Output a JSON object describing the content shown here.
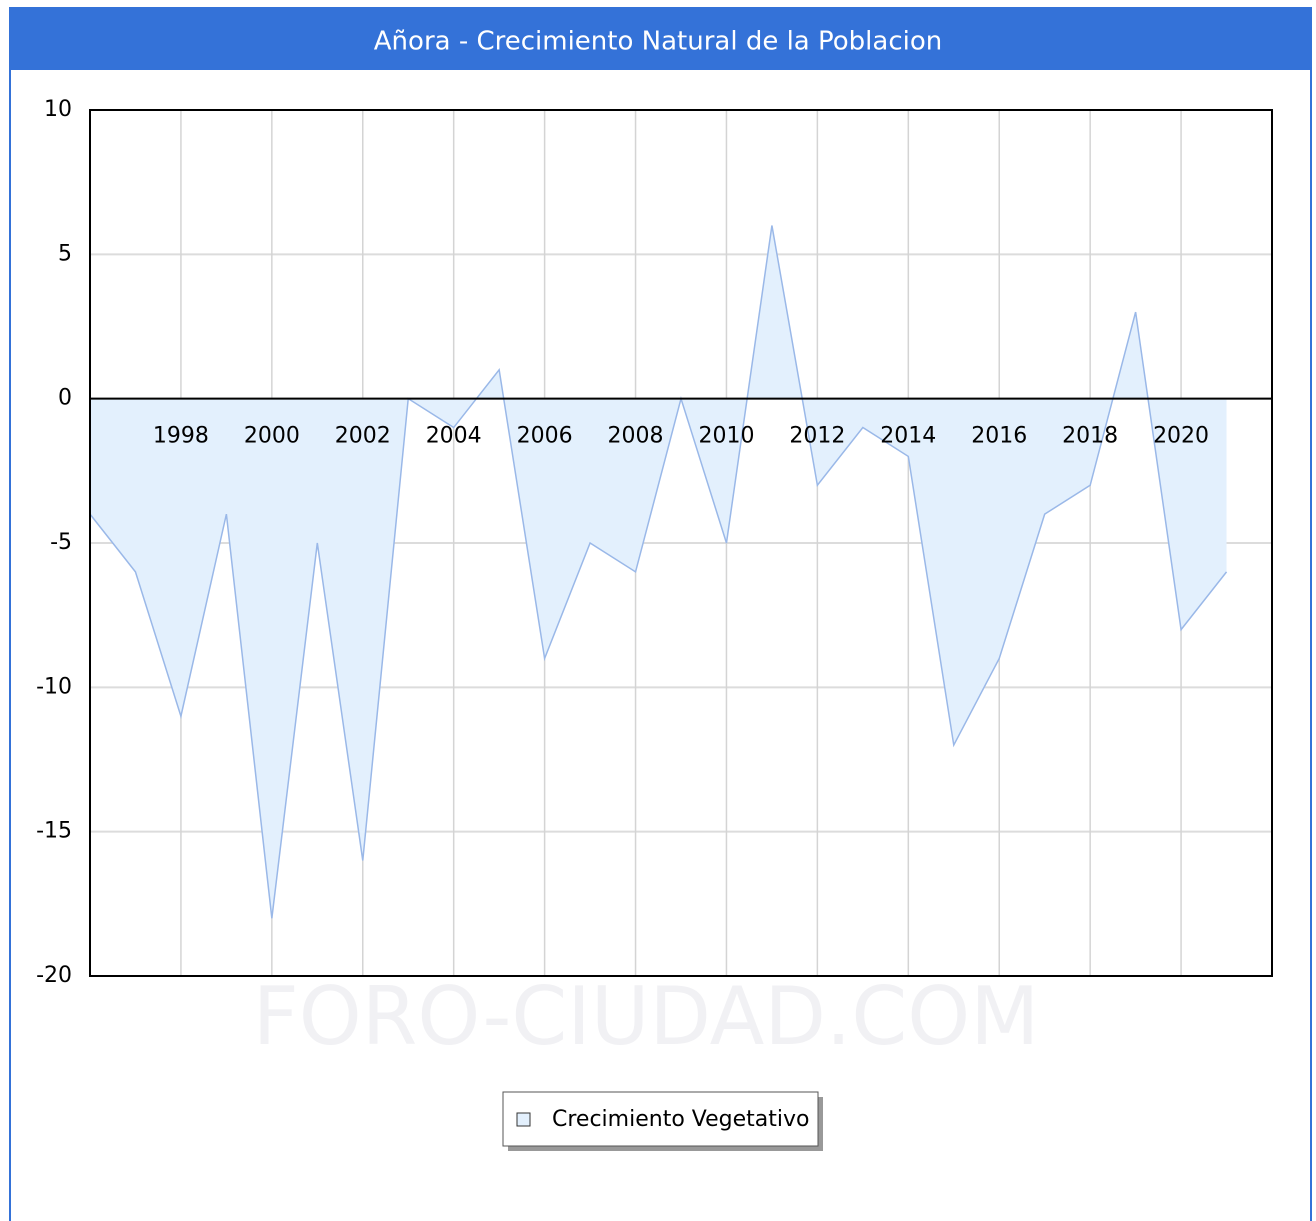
{
  "chart_data": {
    "type": "area",
    "title": "Añora - Crecimiento Natural de la Poblacion",
    "watermark": "FORO-CIUDAD.COM",
    "x": [
      1996,
      1997,
      1998,
      1999,
      2000,
      2001,
      2002,
      2003,
      2004,
      2005,
      2006,
      2007,
      2008,
      2009,
      2010,
      2011,
      2012,
      2013,
      2014,
      2015,
      2016,
      2017,
      2018,
      2019,
      2020,
      2021
    ],
    "series": [
      {
        "name": "Crecimiento Vegetativo",
        "color": "#9ab8e8",
        "fill": "#e3f0fd",
        "values": [
          -4,
          -6,
          -11,
          -4,
          -18,
          -5,
          -16,
          0,
          -1,
          1,
          -9,
          -5,
          -6,
          0,
          -5,
          6,
          -3,
          -1,
          -2,
          -12,
          -9,
          -4,
          -3,
          3,
          -8,
          -6
        ]
      }
    ],
    "xlim": [
      1996,
      2022
    ],
    "xticks": [
      1998,
      2000,
      2002,
      2004,
      2006,
      2008,
      2010,
      2012,
      2014,
      2016,
      2018,
      2020
    ],
    "ylim": [
      -20,
      10
    ],
    "yticks": [
      10,
      5,
      0,
      -5,
      -10,
      -15,
      -20
    ],
    "grid": true,
    "legend": "bottom"
  }
}
